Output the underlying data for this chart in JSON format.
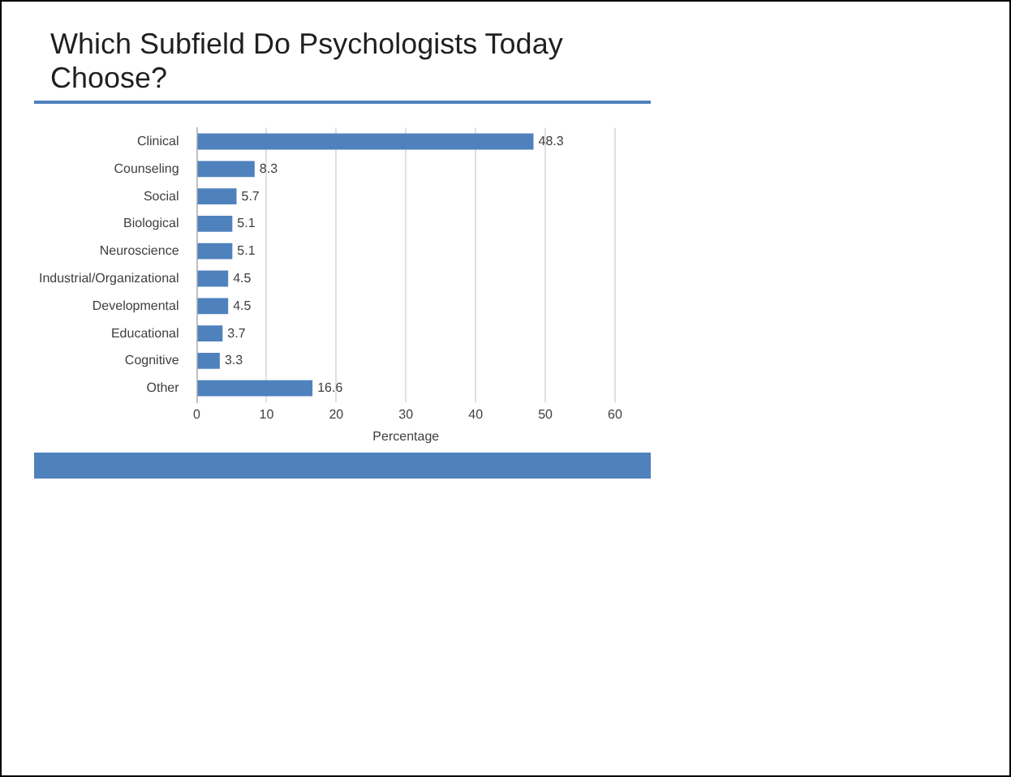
{
  "chart_data": {
    "type": "bar",
    "orientation": "horizontal",
    "title": "Which Subfield Do Psychologists Today Choose?",
    "xlabel": "Percentage",
    "categories": [
      "Clinical",
      "Counseling",
      "Social",
      "Biological",
      "Neuroscience",
      "Industrial/Organizational",
      "Developmental",
      "Educational",
      "Cognitive",
      "Other"
    ],
    "values": [
      48.3,
      8.3,
      5.7,
      5.1,
      5.1,
      4.5,
      4.5,
      3.7,
      3.3,
      16.6
    ],
    "color": "#4f81bd",
    "xlim": [
      0,
      60
    ],
    "xticks": [
      0,
      10,
      20,
      30,
      40,
      50,
      60
    ],
    "grid": "x",
    "data_labels": true
  }
}
